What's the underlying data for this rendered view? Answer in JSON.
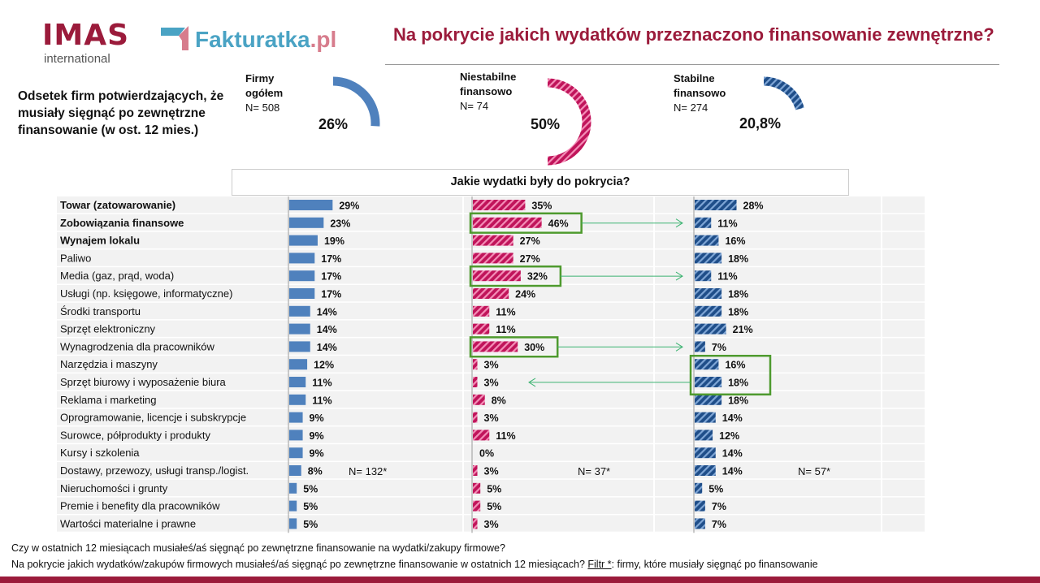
{
  "header": {
    "logo_imas": "IMAS",
    "logo_imas_sub": "international",
    "logo_fakturatka": "Fakturatka",
    "logo_fakturatka_tld": ".pl",
    "title": "Na pokrycie jakich wydatków przeznaczono finansowanie zewnętrzne?"
  },
  "lead_text": "Odsetek firm potwierdzających, że musiały sięgnąć po zewnętrzne finansowanie (w ost. 12 mies.)",
  "gauges": [
    {
      "label1": "Firmy",
      "label2": "ogółem",
      "n": "N= 508",
      "value_text": "26%",
      "value": 26,
      "color": "#4f81bd",
      "pattern": "solid"
    },
    {
      "label1": "Niestabilne",
      "label2": "finansowo",
      "n": "N= 74",
      "value_text": "50%",
      "value": 50,
      "color": "#c0145a",
      "pattern": "hatched"
    },
    {
      "label1": "Stabilne",
      "label2": "finansowo",
      "n": "N= 274",
      "value_text": "20,8%",
      "value": 20.8,
      "color": "#1f4e89",
      "pattern": "hatched"
    }
  ],
  "question": "Jakie wydatki były do pokrycia?",
  "chart_data": {
    "type": "bar",
    "orientation": "horizontal",
    "categories": [
      "Towar (zatowarowanie)",
      "Zobowiązania finansowe",
      "Wynajem lokalu",
      "Paliwo",
      "Media (gaz, prąd, woda)",
      "Usługi (np. księgowe, informatyczne)",
      "Środki transportu",
      "Sprzęt elektroniczny",
      "Wynagrodzenia dla pracowników",
      "Narzędzia i maszyny",
      "Sprzęt biurowy i wyposażenie biura",
      "Reklama i marketing",
      "Oprogramowanie, licencje i subskrypcje",
      "Surowce, półprodukty i produkty",
      "Kursy i szkolenia",
      "Dostawy, przewozy, usługi transp./logist.",
      "Nieruchomości i grunty",
      "Premie i benefity dla pracowników",
      "Wartości materialne i prawne"
    ],
    "bold_categories": [
      "Towar (zatowarowanie)",
      "Zobowiązania finansowe",
      "Wynajem lokalu"
    ],
    "series": [
      {
        "n": "N= 132*",
        "color": "#4f81bd",
        "pattern": "solid",
        "values": [
          29,
          23,
          19,
          17,
          17,
          17,
          14,
          14,
          14,
          12,
          11,
          11,
          9,
          9,
          9,
          8,
          5,
          5,
          5
        ]
      },
      {
        "n": "N= 37*",
        "color": "#c0145a",
        "pattern": "hatched",
        "values": [
          35,
          46,
          27,
          27,
          32,
          24,
          11,
          11,
          30,
          3,
          3,
          8,
          3,
          11,
          0,
          3,
          5,
          5,
          3
        ]
      },
      {
        "n": "N= 57*",
        "color": "#1f4e89",
        "pattern": "hatched",
        "values": [
          28,
          11,
          16,
          18,
          11,
          18,
          18,
          21,
          7,
          16,
          18,
          18,
          14,
          12,
          14,
          14,
          5,
          7,
          7
        ]
      }
    ],
    "value_suffix": "%",
    "highlight_color": "#4e9a2e",
    "arrow_color": "#3cb371",
    "highlights": [
      {
        "from_series": 1,
        "to_series": 2,
        "rows": [
          1
        ]
      },
      {
        "from_series": 1,
        "to_series": 2,
        "rows": [
          4
        ]
      },
      {
        "from_series": 1,
        "to_series": 2,
        "rows": [
          8
        ]
      },
      {
        "from_series": 2,
        "to_series": 1,
        "rows": [
          9,
          10
        ]
      }
    ]
  },
  "footer": {
    "line1": "Czy w ostatnich 12 miesiącach musiałeś/aś sięgnąć po zewnętrzne finansowanie na wydatki/zakupy firmowe?",
    "line2_main": "Na pokrycie jakich wydatków/zakupów  firmowych musiałeś/aś sięgnąć po zewnętrzne finansowanie w ostatnich 12 miesiącach? ",
    "line2_filter_label": "Filtr *",
    "line2_filter_text": ": firmy, które musiały sięgnąć po finansowanie"
  }
}
